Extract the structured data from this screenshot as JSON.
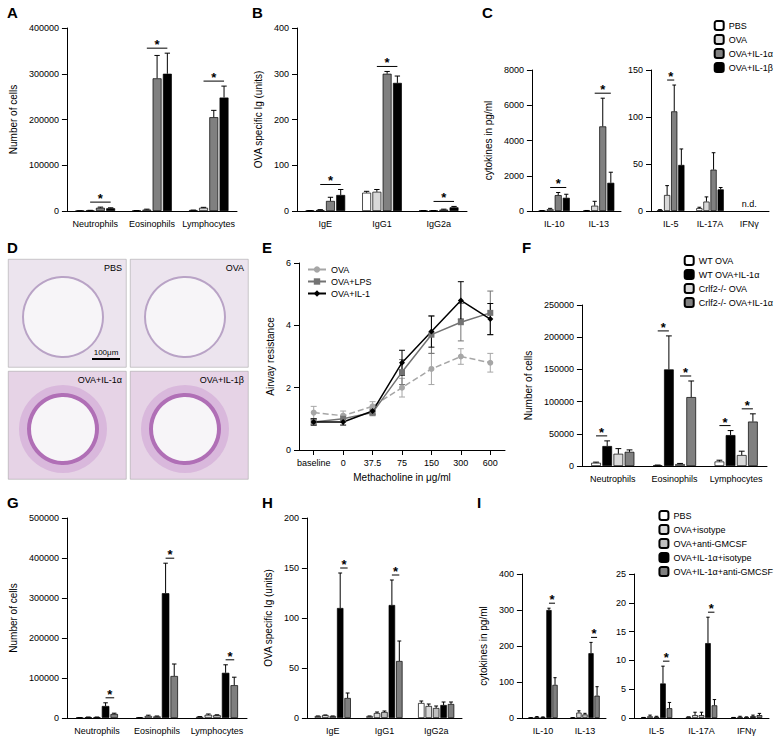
{
  "chart_data": [
    {
      "type": "bar",
      "title": "A",
      "y_label": "Number of cells",
      "categories": [
        "Neutrophils",
        "Eosinophils",
        "Lymphocytes"
      ],
      "series": [
        {
          "name": "PBS",
          "color": "#ffffff",
          "values": [
            500,
            1000,
            2000
          ],
          "errors": [
            0,
            0,
            0
          ]
        },
        {
          "name": "OVA",
          "color": "#d9d9d9",
          "values": [
            1000,
            3000,
            7000
          ],
          "errors": [
            500,
            1000,
            1000
          ]
        },
        {
          "name": "OVA+IL-1α",
          "color": "#808080",
          "values": [
            7000,
            290000,
            205000
          ],
          "errors": [
            1500,
            50000,
            15000
          ]
        },
        {
          "name": "OVA+IL-1β",
          "color": "#000000",
          "values": [
            6000,
            300000,
            248000
          ],
          "errors": [
            1000,
            45000,
            25000
          ]
        }
      ],
      "ylim": [
        0,
        400000
      ],
      "yticks": [
        0,
        100000,
        200000,
        300000,
        400000
      ],
      "grid": false,
      "annotations": [
        {
          "category": "Neutrophils",
          "from": "OVA",
          "to": "OVA+IL-1β",
          "text": "*"
        },
        {
          "category": "Eosinophils",
          "from": "OVA",
          "to": "OVA+IL-1β",
          "text": "*"
        },
        {
          "category": "Lymphocytes",
          "from": "OVA",
          "to": "OVA+IL-1β",
          "text": "*"
        }
      ]
    },
    {
      "type": "bar",
      "title": "B",
      "y_label": "OVA specific Ig (units)",
      "categories": [
        "IgE",
        "IgG1",
        "IgG2a"
      ],
      "series": [
        {
          "name": "PBS",
          "color": "#ffffff",
          "values": [
            1,
            40,
            1
          ],
          "errors": [
            0,
            3,
            0
          ]
        },
        {
          "name": "OVA",
          "color": "#d9d9d9",
          "values": [
            2,
            42,
            1
          ],
          "errors": [
            1,
            5,
            0
          ]
        },
        {
          "name": "OVA+IL-1α",
          "color": "#808080",
          "values": [
            22,
            300,
            3
          ],
          "errors": [
            8,
            5,
            1
          ]
        },
        {
          "name": "OVA+IL-1β",
          "color": "#000000",
          "values": [
            35,
            280,
            8
          ],
          "errors": [
            12,
            15,
            2
          ]
        }
      ],
      "ylim": [
        0,
        400
      ],
      "yticks": [
        0,
        100,
        200,
        300,
        400
      ],
      "grid": false,
      "annotations": [
        {
          "category": "IgE",
          "from": "OVA",
          "to": "OVA+IL-1β",
          "text": "*"
        },
        {
          "category": "IgG1",
          "from": "OVA",
          "to": "OVA+IL-1β",
          "text": "*"
        },
        {
          "category": "IgG2a",
          "from": "OVA",
          "to": "OVA+IL-1β",
          "text": "*"
        }
      ]
    },
    {
      "type": "bar",
      "title": "C",
      "y_label": "cytokines in pg/ml",
      "categories": [
        "IL-10",
        "IL-13"
      ],
      "series": [
        {
          "name": "PBS",
          "color": "#ffffff",
          "values": [
            20,
            20
          ],
          "errors": [
            5,
            10
          ]
        },
        {
          "name": "OVA",
          "color": "#d9d9d9",
          "values": [
            100,
            300
          ],
          "errors": [
            50,
            250
          ]
        },
        {
          "name": "OVA+IL-1α",
          "color": "#808080",
          "values": [
            900,
            4800
          ],
          "errors": [
            150,
            1600
          ]
        },
        {
          "name": "OVA+IL-1β",
          "color": "#000000",
          "values": [
            750,
            1600
          ],
          "errors": [
            200,
            600
          ]
        }
      ],
      "ylim": [
        0,
        8000
      ],
      "yticks": [
        0,
        2000,
        4000,
        6000,
        8000
      ],
      "grid": false,
      "annotations": [
        {
          "category": "IL-10",
          "from": "OVA",
          "to": "OVA+IL-1β",
          "text": "*"
        },
        {
          "category": "IL-13",
          "from": "OVA",
          "to": "OVA+IL-1β",
          "text": "*"
        }
      ]
    },
    {
      "type": "bar",
      "categories": [
        "IL-5",
        "IL-17A",
        "IFNγ"
      ],
      "series": [
        {
          "name": "PBS",
          "color": "#ffffff",
          "values": [
            1,
            3,
            null
          ],
          "errors": [
            0.5,
            1,
            null
          ]
        },
        {
          "name": "OVA",
          "color": "#d9d9d9",
          "values": [
            17,
            10,
            null
          ],
          "errors": [
            10,
            5,
            null
          ]
        },
        {
          "name": "OVA+IL-1α",
          "color": "#808080",
          "values": [
            106,
            44,
            null
          ],
          "errors": [
            28,
            18,
            null
          ]
        },
        {
          "name": "OVA+IL-1β",
          "color": "#000000",
          "values": [
            49,
            23,
            null
          ],
          "errors": [
            17,
            2,
            null
          ]
        }
      ],
      "ylim": [
        0,
        150
      ],
      "yticks": [
        0,
        50,
        100,
        150
      ],
      "grid": false,
      "legend": "upper right",
      "annotations": [
        {
          "category": "IL-5",
          "from": "OVA",
          "to": "OVA+IL-1α",
          "text": "*"
        },
        {
          "category": "IFNγ",
          "text": "n.d."
        }
      ]
    },
    {
      "type": "micrograph",
      "title": "D",
      "panels": [
        "PBS",
        "OVA",
        "OVA+IL-1α",
        "OVA+IL-1β"
      ],
      "scale_bar": "100μm"
    },
    {
      "type": "line",
      "title": "E",
      "y_label": "Airway resistance",
      "x_label": "Methacholine in μg/ml",
      "categories": [
        "baseline",
        "0",
        "37.5",
        "75",
        "150",
        "300",
        "600"
      ],
      "series": [
        {
          "name": "OVA",
          "color": "#a6a6a6",
          "marker": "circle",
          "line_style": "dashed",
          "values": [
            1.2,
            1.1,
            1.4,
            2.0,
            2.6,
            3.0,
            2.8
          ],
          "errors": [
            0.2,
            0.15,
            0.15,
            0.3,
            0.5,
            0.25,
            0.3
          ]
        },
        {
          "name": "OVA+LPS",
          "color": "#737373",
          "marker": "square",
          "line_style": "solid",
          "values": [
            0.9,
            1.0,
            1.2,
            2.5,
            3.7,
            4.1,
            4.4
          ],
          "errors": [
            0.1,
            0.1,
            0.1,
            0.4,
            0.6,
            0.6,
            0.7
          ]
        },
        {
          "name": "OVA+IL-1",
          "color": "#000000",
          "marker": "diamond",
          "line_style": "solid",
          "values": [
            0.9,
            0.9,
            1.25,
            2.8,
            3.8,
            4.8,
            4.2
          ],
          "errors": [
            0.1,
            0.1,
            0.1,
            0.4,
            0.5,
            0.6,
            0.5
          ]
        }
      ],
      "ylim": [
        0,
        6
      ],
      "yticks": [
        0,
        2,
        4,
        6
      ],
      "grid": false,
      "legend": "upper left"
    },
    {
      "type": "bar",
      "title": "F",
      "y_label": "Number of cells",
      "categories": [
        "Neutrophils",
        "Eosinophils",
        "Lymphocytes"
      ],
      "series": [
        {
          "name": "WT OVA",
          "color": "#ffffff",
          "values": [
            5000,
            1000,
            7000
          ],
          "errors": [
            1000,
            500,
            2000
          ]
        },
        {
          "name": "WT OVA+IL-1α",
          "color": "#000000",
          "values": [
            31000,
            150000,
            48000
          ],
          "errors": [
            8000,
            52000,
            7000
          ]
        },
        {
          "name": "Crlf2-/- OVA",
          "color": "#d9d9d9",
          "values": [
            19000,
            3000,
            17000
          ],
          "errors": [
            8000,
            1000,
            6000
          ]
        },
        {
          "name": "Crlf2-/- OVA+IL-1α",
          "color": "#808080",
          "values": [
            22000,
            107000,
            69000
          ],
          "errors": [
            3000,
            25000,
            12000
          ]
        }
      ],
      "ylim": [
        0,
        250000
      ],
      "yticks": [
        0,
        50000,
        100000,
        150000,
        200000,
        250000
      ],
      "grid": false,
      "legend": "upper right",
      "annotations": [
        {
          "category": "Neutrophils",
          "from": "WT OVA",
          "to": "WT OVA+IL-1α",
          "text": "*"
        },
        {
          "category": "Eosinophils",
          "from": "WT OVA",
          "to": "WT OVA+IL-1α",
          "text": "*"
        },
        {
          "category": "Eosinophils",
          "from": "Crlf2-/- OVA",
          "to": "Crlf2-/- OVA+IL-1α",
          "text": "*"
        },
        {
          "category": "Lymphocytes",
          "from": "WT OVA",
          "to": "WT OVA+IL-1α",
          "text": "*"
        },
        {
          "category": "Lymphocytes",
          "from": "Crlf2-/- OVA",
          "to": "Crlf2-/- OVA+IL-1α",
          "text": "*"
        }
      ]
    },
    {
      "type": "bar",
      "title": "G",
      "y_label": "Number of cells",
      "categories": [
        "Neutrophils",
        "Eosinophils",
        "Lymphocytes"
      ],
      "series": [
        {
          "name": "PBS",
          "color": "#ffffff",
          "values": [
            1000,
            1000,
            3000
          ],
          "errors": [
            0,
            0,
            500
          ]
        },
        {
          "name": "OVA+isotype",
          "color": "#d9d9d9",
          "values": [
            2000,
            5000,
            8000
          ],
          "errors": [
            500,
            2000,
            2000
          ]
        },
        {
          "name": "OVA+anti-GMCSF",
          "color": "#bfbfbf",
          "values": [
            2000,
            4000,
            7000
          ],
          "errors": [
            500,
            1000,
            1000
          ]
        },
        {
          "name": "OVA+IL-1α+isotype",
          "color": "#000000",
          "values": [
            30000,
            312000,
            113000
          ],
          "errors": [
            8000,
            75000,
            20000
          ]
        },
        {
          "name": "OVA+IL-1α+anti-GMCSF",
          "color": "#7f7f7f",
          "values": [
            10000,
            105000,
            82000
          ],
          "errors": [
            2000,
            30000,
            20000
          ]
        }
      ],
      "ylim": [
        0,
        500000
      ],
      "yticks": [
        0,
        100000,
        200000,
        300000,
        400000,
        500000
      ],
      "grid": false,
      "annotations": [
        {
          "category": "Neutrophils",
          "from": "OVA+IL-1α+isotype",
          "to": "OVA+IL-1α+anti-GMCSF",
          "text": "*"
        },
        {
          "category": "Eosinophils",
          "from": "OVA+IL-1α+isotype",
          "to": "OVA+IL-1α+anti-GMCSF",
          "text": "*"
        },
        {
          "category": "Lymphocytes",
          "from": "OVA+IL-1α+isotype",
          "to": "OVA+IL-1α+anti-GMCSF",
          "text": "*"
        }
      ]
    },
    {
      "type": "bar",
      "title": "H",
      "y_label": "OVA specific Ig (units)",
      "categories": [
        "IgE",
        "IgG1",
        "IgG2a"
      ],
      "series": [
        {
          "name": "PBS",
          "color": "#ffffff",
          "values": [
            2,
            2,
            15
          ],
          "errors": [
            0,
            0,
            2
          ]
        },
        {
          "name": "OVA+isotype",
          "color": "#d9d9d9",
          "values": [
            3,
            5,
            12
          ],
          "errors": [
            0,
            1,
            2
          ]
        },
        {
          "name": "OVA+anti-GMCSF",
          "color": "#bfbfbf",
          "values": [
            2,
            6,
            10
          ],
          "errors": [
            0,
            1,
            2
          ]
        },
        {
          "name": "OVA+IL-1α+isotype",
          "color": "#000000",
          "values": [
            110,
            113,
            13
          ],
          "errors": [
            35,
            25,
            3
          ]
        },
        {
          "name": "OVA+IL-1α+anti-GMCSF",
          "color": "#7f7f7f",
          "values": [
            20,
            57,
            14
          ],
          "errors": [
            5,
            20,
            2
          ]
        }
      ],
      "ylim": [
        0,
        200
      ],
      "yticks": [
        0,
        50,
        100,
        150,
        200
      ],
      "grid": false,
      "annotations": [
        {
          "category": "IgE",
          "from": "OVA+IL-1α+isotype",
          "to": "OVA+IL-1α+anti-GMCSF",
          "text": "*"
        },
        {
          "category": "IgG1",
          "from": "OVA+IL-1α+isotype",
          "to": "OVA+IL-1α+anti-GMCSF",
          "text": "*"
        }
      ]
    },
    {
      "type": "bar",
      "title": "I",
      "y_label": "cytokines in pg/ml",
      "categories": [
        "IL-10",
        "IL-13"
      ],
      "series": [
        {
          "name": "PBS",
          "color": "#ffffff",
          "values": [
            1,
            1
          ],
          "errors": [
            0,
            0
          ]
        },
        {
          "name": "OVA+isotype",
          "color": "#d9d9d9",
          "values": [
            3,
            15
          ],
          "errors": [
            1,
            5
          ]
        },
        {
          "name": "OVA+anti-GMCSF",
          "color": "#bfbfbf",
          "values": [
            2,
            10
          ],
          "errors": [
            1,
            3
          ]
        },
        {
          "name": "OVA+IL-1α+isotype",
          "color": "#000000",
          "values": [
            300,
            180
          ],
          "errors": [
            5,
            30
          ]
        },
        {
          "name": "OVA+IL-1α+anti-GMCSF",
          "color": "#7f7f7f",
          "values": [
            92,
            62
          ],
          "errors": [
            20,
            25
          ]
        }
      ],
      "ylim": [
        0,
        400
      ],
      "yticks": [
        0,
        100,
        200,
        300,
        400
      ],
      "grid": false,
      "annotations": [
        {
          "category": "IL-10",
          "from": "OVA+IL-1α+isotype",
          "to": "OVA+IL-1α+anti-GMCSF",
          "text": "*"
        },
        {
          "category": "IL-13",
          "from": "OVA+IL-1α+isotype",
          "to": "OVA+IL-1α+anti-GMCSF",
          "text": "*"
        }
      ]
    },
    {
      "type": "bar",
      "categories": [
        "IL-5",
        "IL-17A",
        "IFNγ"
      ],
      "series": [
        {
          "name": "PBS",
          "color": "#ffffff",
          "values": [
            0.1,
            0.2,
            0.1
          ],
          "errors": [
            0,
            0,
            0
          ]
        },
        {
          "name": "OVA+isotype",
          "color": "#d9d9d9",
          "values": [
            0.3,
            0.5,
            0.2
          ],
          "errors": [
            0.2,
            0.5,
            0.1
          ]
        },
        {
          "name": "OVA+anti-GMCSF",
          "color": "#bfbfbf",
          "values": [
            0.2,
            0.5,
            0.1
          ],
          "errors": [
            0.1,
            0.5,
            0.1
          ]
        },
        {
          "name": "OVA+IL-1α+isotype",
          "color": "#000000",
          "values": [
            6,
            13,
            0.3
          ],
          "errors": [
            3,
            4.5,
            0.2
          ]
        },
        {
          "name": "OVA+IL-1α+anti-GMCSF",
          "color": "#7f7f7f",
          "values": [
            1.7,
            2.2,
            0.5
          ],
          "errors": [
            1,
            1,
            0.3
          ]
        }
      ],
      "ylim": [
        0,
        25
      ],
      "yticks": [
        0,
        5,
        10,
        15,
        20,
        25
      ],
      "grid": false,
      "legend": "upper right",
      "annotations": [
        {
          "category": "IL-5",
          "from": "OVA+IL-1α+isotype",
          "to": "OVA+IL-1α+anti-GMCSF",
          "text": "*"
        },
        {
          "category": "IL-17A",
          "from": "OVA+IL-1α+isotype",
          "to": "OVA+IL-1α+anti-GMCSF",
          "text": "*"
        }
      ]
    }
  ]
}
